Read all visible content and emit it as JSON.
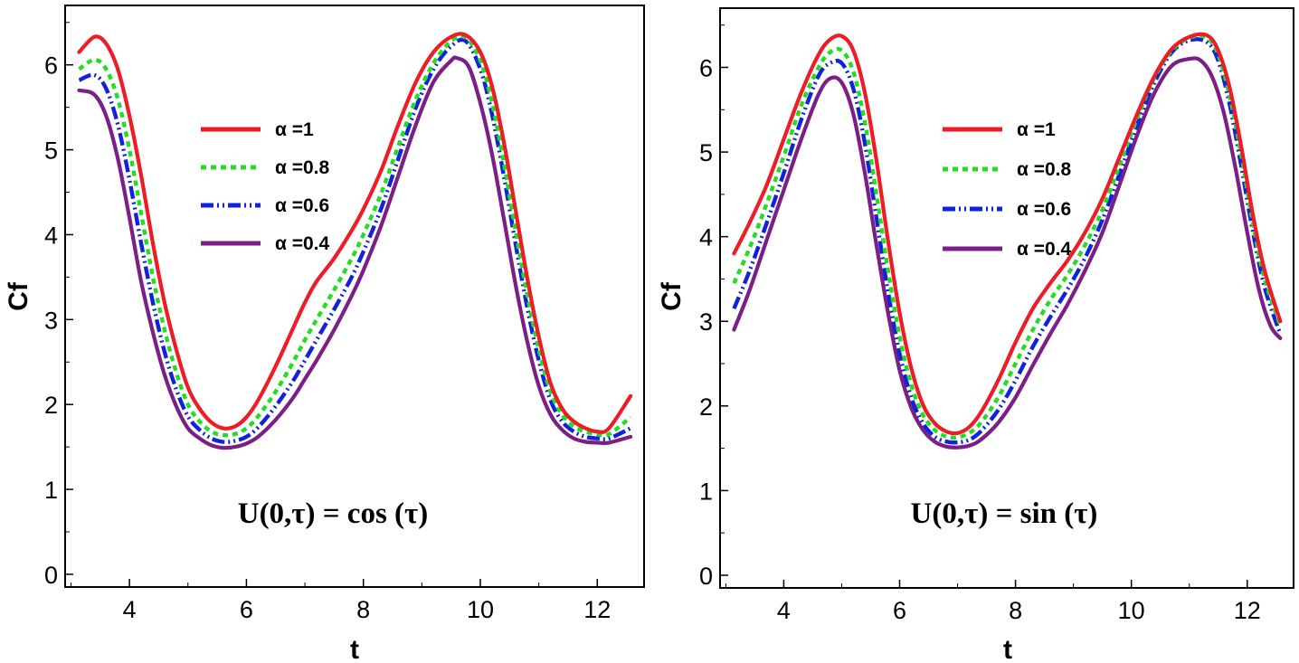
{
  "chart_data": [
    {
      "type": "line",
      "title": "",
      "xlabel": "t",
      "ylabel": "Cf",
      "xlim": [
        2.9,
        12.8
      ],
      "ylim": [
        -0.15,
        6.7
      ],
      "xticks": [
        4,
        6,
        8,
        10,
        12
      ],
      "yticks": [
        0,
        1,
        2,
        3,
        4,
        5,
        6
      ],
      "annotation": "U(0,τ) = cos (τ)",
      "legend_position": "upper-center",
      "series": [
        {
          "name": "α =1",
          "color": "#ee1c25",
          "dash": "solid",
          "x": [
            3.14,
            3.4,
            3.6,
            3.8,
            4.0,
            4.2,
            4.4,
            4.6,
            4.8,
            5.0,
            5.2,
            5.4,
            5.6,
            5.8,
            6.0,
            6.2,
            6.5,
            6.8,
            7.0,
            7.2,
            7.5,
            7.8,
            8.0,
            8.3,
            8.6,
            8.9,
            9.2,
            9.5,
            9.75,
            10.0,
            10.2,
            10.4,
            10.6,
            10.8,
            11.0,
            11.2,
            11.4,
            11.6,
            11.8,
            12.0,
            12.2,
            12.57
          ],
          "y": [
            6.15,
            6.33,
            6.25,
            5.95,
            5.4,
            4.7,
            3.9,
            3.2,
            2.65,
            2.2,
            1.95,
            1.79,
            1.72,
            1.74,
            1.85,
            2.05,
            2.45,
            2.9,
            3.2,
            3.45,
            3.72,
            4.05,
            4.3,
            4.75,
            5.3,
            5.8,
            6.15,
            6.33,
            6.35,
            6.15,
            5.75,
            5.1,
            4.3,
            3.5,
            2.8,
            2.25,
            1.95,
            1.8,
            1.72,
            1.68,
            1.72,
            2.1
          ]
        },
        {
          "name": "α =0.8",
          "color": "#22dd22",
          "dash": "dotted",
          "x": [
            3.14,
            3.4,
            3.6,
            3.8,
            4.0,
            4.2,
            4.4,
            4.6,
            4.8,
            5.0,
            5.2,
            5.4,
            5.6,
            5.8,
            6.0,
            6.2,
            6.5,
            6.8,
            7.0,
            7.2,
            7.5,
            7.8,
            8.0,
            8.3,
            8.6,
            8.9,
            9.2,
            9.5,
            9.75,
            10.0,
            10.2,
            10.4,
            10.6,
            10.8,
            11.0,
            11.2,
            11.4,
            11.6,
            11.8,
            12.0,
            12.2,
            12.57
          ],
          "y": [
            5.95,
            6.06,
            5.95,
            5.6,
            5.0,
            4.25,
            3.5,
            2.88,
            2.38,
            2.0,
            1.8,
            1.68,
            1.64,
            1.65,
            1.72,
            1.86,
            2.15,
            2.5,
            2.76,
            3.0,
            3.35,
            3.72,
            4.0,
            4.48,
            5.05,
            5.6,
            6.02,
            6.28,
            6.32,
            6.05,
            5.55,
            4.85,
            4.05,
            3.3,
            2.65,
            2.15,
            1.88,
            1.74,
            1.68,
            1.65,
            1.65,
            1.85
          ]
        },
        {
          "name": "α =0.6",
          "color": "#1122dd",
          "dash": "dashdot",
          "x": [
            3.14,
            3.4,
            3.6,
            3.8,
            4.0,
            4.2,
            4.4,
            4.6,
            4.8,
            5.0,
            5.2,
            5.4,
            5.6,
            5.8,
            6.0,
            6.2,
            6.5,
            6.8,
            7.0,
            7.2,
            7.5,
            7.8,
            8.0,
            8.3,
            8.6,
            8.9,
            9.2,
            9.5,
            9.75,
            10.0,
            10.2,
            10.4,
            10.6,
            10.8,
            11.0,
            11.2,
            11.4,
            11.6,
            11.8,
            12.0,
            12.2,
            12.57
          ],
          "y": [
            5.82,
            5.88,
            5.72,
            5.3,
            4.65,
            3.9,
            3.2,
            2.62,
            2.18,
            1.86,
            1.7,
            1.6,
            1.56,
            1.57,
            1.62,
            1.73,
            1.98,
            2.28,
            2.52,
            2.76,
            3.12,
            3.5,
            3.8,
            4.3,
            4.9,
            5.5,
            5.95,
            6.22,
            6.28,
            5.95,
            5.42,
            4.7,
            3.9,
            3.15,
            2.52,
            2.05,
            1.8,
            1.68,
            1.62,
            1.6,
            1.6,
            1.72
          ]
        },
        {
          "name": "α =0.4",
          "color": "#7b1f86",
          "dash": "solid",
          "x": [
            3.14,
            3.4,
            3.6,
            3.8,
            4.0,
            4.2,
            4.4,
            4.6,
            4.8,
            5.0,
            5.2,
            5.4,
            5.6,
            5.8,
            6.0,
            6.2,
            6.5,
            6.8,
            7.0,
            7.2,
            7.5,
            7.8,
            8.0,
            8.3,
            8.6,
            8.9,
            9.2,
            9.5,
            9.6,
            9.8,
            10.0,
            10.2,
            10.4,
            10.6,
            10.8,
            11.0,
            11.2,
            11.4,
            11.6,
            11.8,
            12.0,
            12.2,
            12.57
          ],
          "y": [
            5.7,
            5.65,
            5.4,
            4.9,
            4.2,
            3.45,
            2.85,
            2.35,
            1.98,
            1.72,
            1.6,
            1.52,
            1.49,
            1.5,
            1.54,
            1.62,
            1.82,
            2.08,
            2.3,
            2.52,
            2.88,
            3.28,
            3.58,
            4.1,
            4.7,
            5.3,
            5.8,
            6.05,
            6.08,
            5.98,
            5.55,
            4.95,
            4.2,
            3.42,
            2.75,
            2.22,
            1.88,
            1.7,
            1.6,
            1.56,
            1.55,
            1.55,
            1.62
          ]
        }
      ]
    },
    {
      "type": "line",
      "title": "",
      "xlabel": "t",
      "ylabel": "Cf",
      "xlim": [
        2.9,
        12.8
      ],
      "ylim": [
        -0.15,
        6.7
      ],
      "xticks": [
        4,
        6,
        8,
        10,
        12
      ],
      "yticks": [
        0,
        1,
        2,
        3,
        4,
        5,
        6
      ],
      "annotation": "U(0,τ) = sin (τ)",
      "legend_position": "upper-center",
      "series": [
        {
          "name": "α =1",
          "color": "#ee1c25",
          "dash": "solid",
          "x": [
            3.14,
            3.4,
            3.7,
            4.0,
            4.3,
            4.6,
            4.8,
            5.0,
            5.2,
            5.4,
            5.6,
            5.8,
            6.0,
            6.2,
            6.4,
            6.6,
            6.8,
            7.0,
            7.2,
            7.4,
            7.7,
            8.0,
            8.3,
            8.6,
            8.9,
            9.2,
            9.5,
            9.8,
            10.1,
            10.4,
            10.7,
            11.0,
            11.3,
            11.5,
            11.7,
            11.9,
            12.1,
            12.3,
            12.57
          ],
          "y": [
            3.8,
            4.15,
            4.6,
            5.15,
            5.7,
            6.15,
            6.33,
            6.37,
            6.2,
            5.7,
            4.9,
            3.95,
            3.1,
            2.45,
            2.02,
            1.8,
            1.7,
            1.68,
            1.75,
            1.92,
            2.3,
            2.75,
            3.15,
            3.45,
            3.72,
            4.05,
            4.45,
            4.95,
            5.45,
            5.9,
            6.22,
            6.36,
            6.38,
            6.2,
            5.75,
            5.05,
            4.25,
            3.6,
            3.0
          ]
        },
        {
          "name": "α =0.8",
          "color": "#22dd22",
          "dash": "dotted",
          "x": [
            3.14,
            3.4,
            3.7,
            4.0,
            4.3,
            4.6,
            4.8,
            5.0,
            5.2,
            5.4,
            5.6,
            5.8,
            6.0,
            6.2,
            6.4,
            6.6,
            6.8,
            7.0,
            7.2,
            7.4,
            7.7,
            8.0,
            8.3,
            8.6,
            8.9,
            9.2,
            9.5,
            9.8,
            10.1,
            10.4,
            10.7,
            11.0,
            11.3,
            11.5,
            11.7,
            11.9,
            12.1,
            12.3,
            12.57
          ],
          "y": [
            3.45,
            3.85,
            4.38,
            4.95,
            5.55,
            6.0,
            6.18,
            6.2,
            5.95,
            5.35,
            4.5,
            3.6,
            2.82,
            2.25,
            1.9,
            1.72,
            1.64,
            1.63,
            1.68,
            1.8,
            2.1,
            2.5,
            2.9,
            3.25,
            3.55,
            3.9,
            4.32,
            4.85,
            5.4,
            5.88,
            6.2,
            6.35,
            6.35,
            6.15,
            5.65,
            4.95,
            4.15,
            3.5,
            2.95
          ]
        },
        {
          "name": "α =0.6",
          "color": "#1122dd",
          "dash": "dashdot",
          "x": [
            3.14,
            3.4,
            3.7,
            4.0,
            4.3,
            4.6,
            4.8,
            5.0,
            5.2,
            5.4,
            5.6,
            5.8,
            6.0,
            6.2,
            6.4,
            6.6,
            6.8,
            7.0,
            7.2,
            7.4,
            7.7,
            8.0,
            8.3,
            8.6,
            8.9,
            9.2,
            9.5,
            9.8,
            10.1,
            10.4,
            10.7,
            11.0,
            11.3,
            11.5,
            11.7,
            11.9,
            12.1,
            12.3,
            12.57
          ],
          "y": [
            3.15,
            3.58,
            4.15,
            4.75,
            5.38,
            5.9,
            6.05,
            6.05,
            5.75,
            5.1,
            4.22,
            3.35,
            2.62,
            2.1,
            1.8,
            1.64,
            1.58,
            1.57,
            1.6,
            1.7,
            1.95,
            2.3,
            2.7,
            3.05,
            3.38,
            3.75,
            4.2,
            4.75,
            5.32,
            5.82,
            6.18,
            6.32,
            6.3,
            6.08,
            5.55,
            4.82,
            4.05,
            3.4,
            2.85
          ]
        },
        {
          "name": "α =0.4",
          "color": "#7b1f86",
          "dash": "solid",
          "x": [
            3.14,
            3.4,
            3.7,
            4.0,
            4.3,
            4.6,
            4.8,
            5.0,
            5.2,
            5.4,
            5.6,
            5.8,
            6.0,
            6.2,
            6.4,
            6.6,
            6.8,
            7.0,
            7.2,
            7.4,
            7.7,
            8.0,
            8.3,
            8.6,
            8.9,
            9.2,
            9.5,
            9.8,
            10.1,
            10.4,
            10.7,
            11.0,
            11.2,
            11.4,
            11.6,
            11.8,
            12.0,
            12.2,
            12.4,
            12.57
          ],
          "y": [
            2.9,
            3.35,
            3.95,
            4.55,
            5.15,
            5.68,
            5.87,
            5.82,
            5.45,
            4.75,
            3.9,
            3.1,
            2.42,
            1.98,
            1.72,
            1.58,
            1.52,
            1.51,
            1.53,
            1.6,
            1.8,
            2.1,
            2.48,
            2.85,
            3.2,
            3.6,
            4.05,
            4.62,
            5.2,
            5.7,
            6.02,
            6.1,
            6.08,
            5.88,
            5.45,
            4.8,
            4.05,
            3.38,
            2.95,
            2.8
          ]
        }
      ]
    }
  ]
}
